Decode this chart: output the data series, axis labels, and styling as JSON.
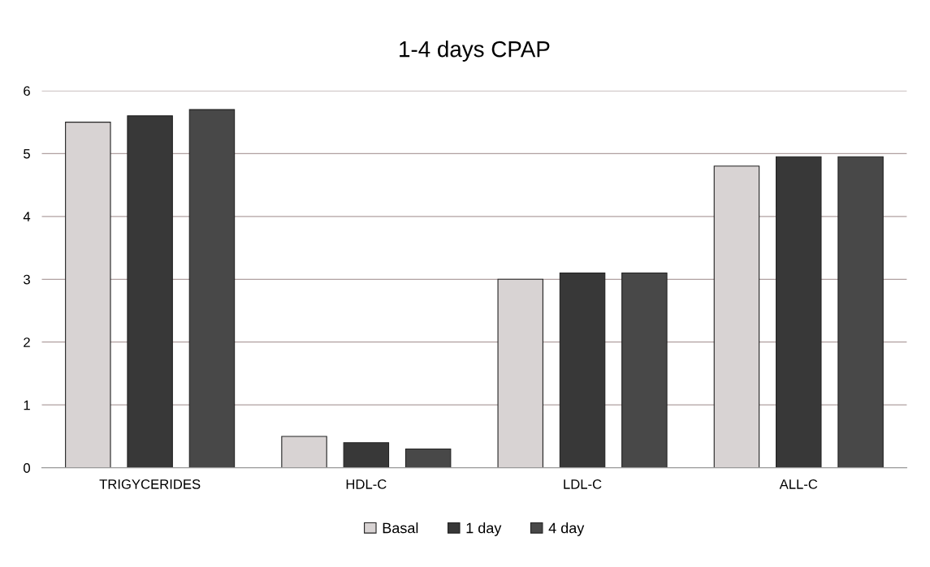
{
  "chart_data": {
    "type": "bar",
    "title": "1-4 days CPAP",
    "categories": [
      "TRIGYCERIDES",
      "HDL-C",
      "LDL-C",
      "ALL-C"
    ],
    "series": [
      {
        "name": "Basal",
        "color": "#d8d3d3",
        "values": [
          5.5,
          0.5,
          3.0,
          4.8
        ]
      },
      {
        "name": "1 day",
        "color": "#383838",
        "values": [
          5.6,
          0.4,
          3.1,
          4.95
        ]
      },
      {
        "name": "4 day",
        "color": "#484848",
        "values": [
          5.7,
          0.3,
          3.1,
          4.95
        ]
      }
    ],
    "ylim": [
      0,
      6
    ],
    "yticks": [
      0,
      1,
      2,
      3,
      4,
      5,
      6
    ],
    "grid": "y",
    "legend": "bottom"
  }
}
